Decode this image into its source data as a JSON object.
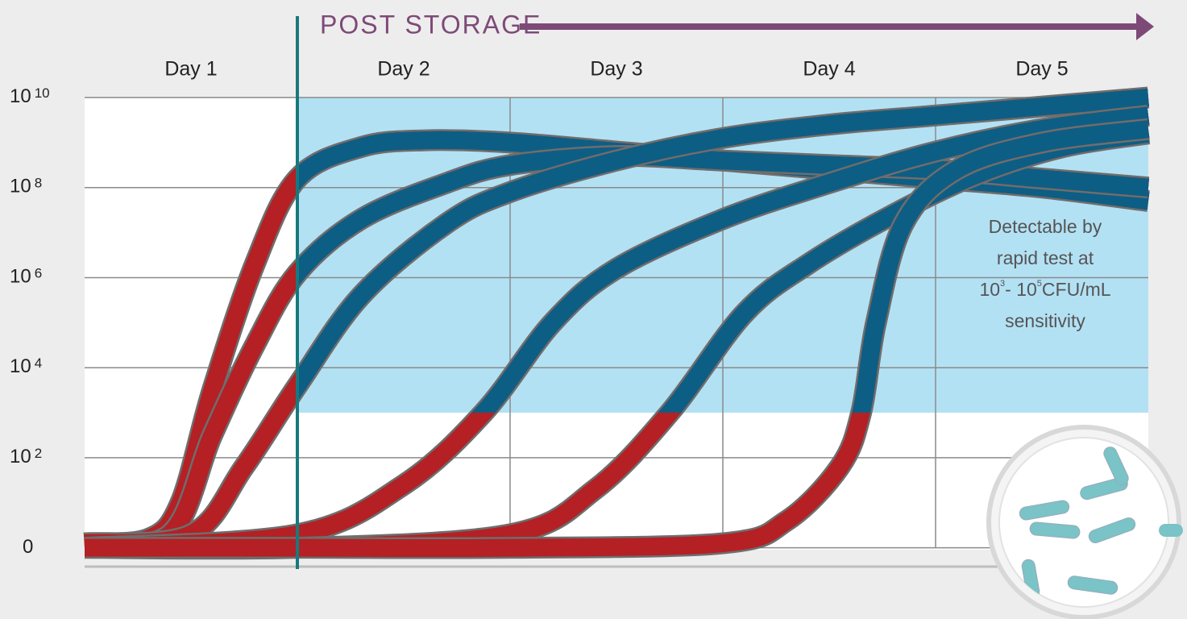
{
  "chart_data": {
    "type": "line",
    "header": "POST STORAGE",
    "categories": [
      "Day 1",
      "Day 2",
      "Day 3",
      "Day 4",
      "Day 5"
    ],
    "xlim": [
      0,
      5
    ],
    "xgrid": [
      1,
      2,
      3,
      4
    ],
    "ylim": [
      -0.4,
      10
    ],
    "yticks": [
      0,
      {
        "value": 2,
        "label": "10"
      },
      {
        "value": 4,
        "label": "10"
      },
      {
        "value": 6,
        "label": "10"
      },
      {
        "value": 8,
        "label": "10"
      },
      {
        "value": 10,
        "label": "10"
      }
    ],
    "storage_x": 1,
    "detectable_zone": {
      "xlim": [
        1,
        5
      ],
      "ylim": [
        3,
        10
      ],
      "color": "#b3e1f4"
    },
    "colors": {
      "undetected": "#b42024",
      "detected": "#0d5e84",
      "storage": "#18797c",
      "header": "#7d4a78"
    },
    "annotation": [
      "Detectable by",
      "rapid test at",
      [
        "10",
        "3",
        "- 10",
        "5",
        "CFU/mL"
      ],
      "sensitivity"
    ],
    "series": [
      {
        "x": [
          0,
          0.3,
          0.45,
          0.6,
          0.8,
          1,
          1.3,
          1.6,
          2,
          2.5,
          3,
          3.5,
          4,
          4.5,
          5
        ],
        "values": [
          0.1,
          0.2,
          1,
          3.5,
          6.3,
          8.2,
          8.9,
          9.05,
          9.0,
          8.8,
          8.6,
          8.4,
          8.2,
          8.0,
          7.7
        ]
      },
      {
        "x": [
          0,
          0.4,
          0.6,
          0.8,
          1,
          1.3,
          1.7,
          2,
          2.5,
          3,
          3.5,
          4,
          4.5,
          5
        ],
        "values": [
          0.1,
          0.3,
          2.5,
          4.5,
          6.1,
          7.3,
          8.1,
          8.5,
          8.7,
          8.6,
          8.5,
          8.4,
          8.2,
          8.0
        ]
      },
      {
        "x": [
          0,
          0.5,
          0.75,
          1,
          1.3,
          1.7,
          2,
          2.5,
          3,
          3.5,
          4,
          4.5,
          5
        ],
        "values": [
          0.1,
          0.3,
          1.8,
          3.6,
          5.6,
          7.2,
          7.9,
          8.6,
          9.1,
          9.4,
          9.6,
          9.8,
          10
        ]
      },
      {
        "x": [
          0,
          1,
          1.5,
          1.875,
          2.2,
          2.5,
          3,
          3.5,
          4,
          4.5,
          5
        ],
        "values": [
          0,
          0.3,
          1.4,
          3,
          5,
          6.2,
          7.3,
          8.1,
          8.8,
          9.3,
          9.6
        ]
      },
      {
        "x": [
          0,
          1,
          2,
          2.4,
          2.75,
          3.1,
          3.4,
          3.8,
          4.2,
          4.6,
          5
        ],
        "values": [
          0,
          0,
          0.3,
          1.3,
          3,
          5.2,
          6.3,
          7.4,
          8.3,
          8.9,
          9.2
        ]
      },
      {
        "x": [
          0,
          1,
          2,
          3,
          3.3,
          3.55,
          3.65,
          3.72,
          3.85,
          4.1,
          4.5,
          5
        ],
        "values": [
          0,
          0,
          0,
          0.1,
          0.6,
          1.8,
          3,
          5,
          7.2,
          8.4,
          9.0,
          9.3
        ]
      }
    ]
  }
}
